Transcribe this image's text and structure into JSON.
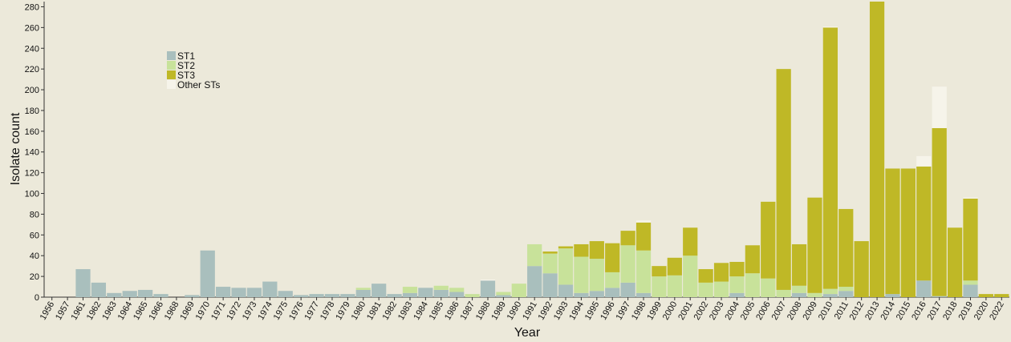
{
  "chart_data": {
    "type": "stacked_bar",
    "y_label": "Isolate count",
    "x_label": "Year",
    "categories": [
      "1956",
      "1957",
      "1961",
      "1962",
      "1963",
      "1964",
      "1965",
      "1966",
      "1968",
      "1969",
      "1970",
      "1971",
      "1972",
      "1973",
      "1974",
      "1975",
      "1976",
      "1977",
      "1978",
      "1979",
      "1980",
      "1981",
      "1982",
      "1983",
      "1984",
      "1985",
      "1986",
      "1987",
      "1988",
      "1989",
      "1990",
      "1991",
      "1992",
      "1993",
      "1994",
      "1995",
      "1996",
      "1997",
      "1998",
      "1999",
      "2000",
      "2001",
      "2002",
      "2003",
      "2004",
      "2005",
      "2006",
      "2007",
      "2008",
      "2009",
      "2010",
      "2011",
      "2012",
      "2013",
      "2014",
      "2015",
      "2016",
      "2017",
      "2018",
      "2019",
      "2020",
      "2022"
    ],
    "series": [
      {
        "name": "ST1",
        "color": "#a9bfbd",
        "values": [
          0,
          0,
          27,
          14,
          4,
          6,
          7,
          3,
          0,
          2,
          45,
          10,
          9,
          9,
          15,
          6,
          2,
          3,
          3,
          3,
          7,
          13,
          3,
          4,
          9,
          7,
          5,
          0,
          16,
          2,
          0,
          30,
          23,
          12,
          4,
          6,
          9,
          14,
          4,
          0,
          0,
          0,
          0,
          0,
          4,
          0,
          0,
          0,
          4,
          0,
          3,
          6,
          0,
          0,
          3,
          0,
          16,
          1,
          0,
          12,
          0,
          0
        ]
      },
      {
        "name": "ST2",
        "color": "#c8e29a",
        "values": [
          0,
          0,
          0,
          0,
          0,
          0,
          0,
          0,
          0,
          0,
          0,
          0,
          0,
          0,
          0,
          0,
          0,
          0,
          0,
          0,
          2,
          0,
          0,
          6,
          0,
          4,
          4,
          3,
          0,
          3,
          13,
          21,
          19,
          35,
          35,
          31,
          15,
          36,
          41,
          20,
          21,
          40,
          14,
          15,
          16,
          23,
          18,
          7,
          7,
          4,
          5,
          4,
          0,
          0,
          0,
          0,
          0,
          0,
          0,
          4,
          0,
          0
        ]
      },
      {
        "name": "ST3",
        "color": "#bfb826",
        "values": [
          0,
          0,
          0,
          0,
          0,
          0,
          0,
          0,
          0,
          0,
          0,
          0,
          0,
          0,
          0,
          0,
          0,
          0,
          0,
          0,
          0,
          0,
          0,
          0,
          0,
          0,
          0,
          0,
          0,
          0,
          0,
          0,
          2,
          2,
          12,
          17,
          28,
          14,
          27,
          10,
          17,
          27,
          13,
          18,
          14,
          27,
          74,
          213,
          40,
          92,
          252,
          75,
          54,
          285,
          121,
          124,
          110,
          162,
          67,
          79,
          3,
          3
        ]
      },
      {
        "name": "Other STs",
        "color": "#f6f4ea",
        "values": [
          0,
          0,
          0,
          0,
          0,
          0,
          0,
          0,
          0,
          0,
          0,
          0,
          0,
          0,
          0,
          0,
          0,
          0,
          0,
          0,
          0,
          0,
          0,
          0,
          0,
          0,
          0,
          0,
          1,
          0,
          0,
          0,
          0,
          0,
          0,
          0,
          0,
          0,
          2,
          0,
          0,
          0,
          0,
          0,
          0,
          0,
          0,
          0,
          0,
          0,
          1,
          0,
          0,
          0,
          0,
          0,
          10,
          40,
          0,
          1,
          0,
          0
        ]
      }
    ],
    "ylim": [
      0,
      285
    ],
    "yticks": [
      0,
      20,
      40,
      60,
      80,
      100,
      120,
      140,
      160,
      180,
      200,
      220,
      240,
      260,
      280
    ],
    "legend": "upper-left"
  }
}
